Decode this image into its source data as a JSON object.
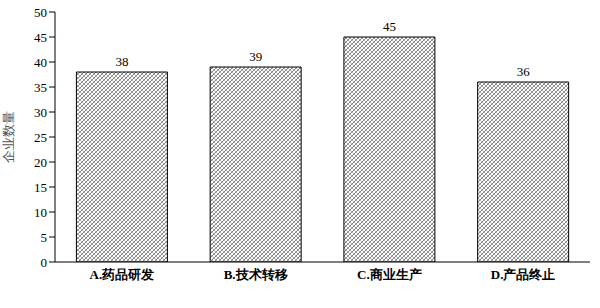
{
  "chart_data": {
    "type": "bar",
    "y_label": "企业数量",
    "categories": [
      "A.药品研发",
      "B.技术转移",
      "C.商业生产",
      "D.产品终止"
    ],
    "values": [
      38,
      39,
      45,
      36
    ],
    "color": "#808080",
    "ylim": [
      0,
      50
    ],
    "yticks": [
      0,
      5,
      10,
      15,
      20,
      25,
      30,
      35,
      40,
      45,
      50
    ],
    "grid": false,
    "data_labels": true
  }
}
